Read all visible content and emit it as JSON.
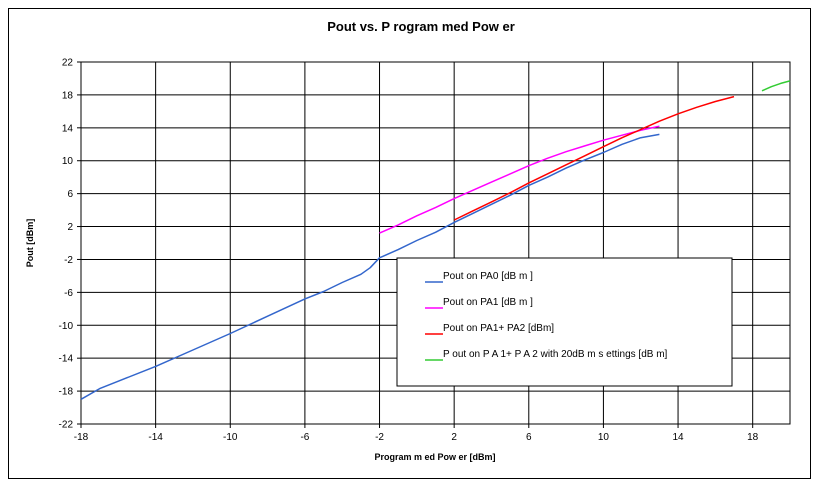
{
  "chart_data": {
    "type": "line",
    "title": "Pout vs. P rogram med Pow er",
    "xlabel": "Program m ed Pow er [dBm]",
    "ylabel": "Pout [dBm]",
    "xlim": [
      -18,
      20
    ],
    "ylim": [
      -22,
      22
    ],
    "xticks": [
      -18,
      -14,
      -10,
      -6,
      -2,
      2,
      6,
      10,
      14,
      18
    ],
    "yticks": [
      -22,
      -18,
      -14,
      -10,
      -6,
      -2,
      2,
      6,
      10,
      14,
      18,
      22
    ],
    "grid": true,
    "legend_position": "bottom-right inside plot",
    "series": [
      {
        "name": "Pout on PA0 [dB m ]",
        "color": "#3366cc",
        "x": [
          -18,
          -17,
          -16,
          -14,
          -12,
          -10,
          -8,
          -6,
          -5,
          -4,
          -3,
          -2.5,
          -2,
          -1,
          0,
          1,
          2,
          3,
          4,
          5,
          6,
          7,
          8,
          9,
          10,
          11,
          12,
          13
        ],
        "y": [
          -19,
          -17.7,
          -16.8,
          -15,
          -13,
          -11,
          -8.9,
          -6.8,
          -5.9,
          -4.8,
          -3.8,
          -3,
          -1.8,
          -0.8,
          0.3,
          1.3,
          2.5,
          3.6,
          4.7,
          5.8,
          7,
          8,
          9.1,
          10.1,
          11,
          12,
          12.8,
          13.2
        ]
      },
      {
        "name": "Pout on PA1 [dB m ]",
        "color": "#ff00ff",
        "x": [
          -2,
          -1,
          0,
          1,
          2,
          3,
          4,
          5,
          6,
          7,
          8,
          9,
          10,
          11,
          12,
          13
        ],
        "y": [
          1.2,
          2.2,
          3.3,
          4.3,
          5.4,
          6.4,
          7.4,
          8.4,
          9.4,
          10.3,
          11.1,
          11.8,
          12.5,
          13.1,
          13.7,
          14.2
        ]
      },
      {
        "name": "Pout on PA1+ PA2 [dBm]",
        "color": "#ff0000",
        "x": [
          2,
          3,
          4,
          5,
          6,
          7,
          8,
          9,
          10,
          11,
          12,
          13,
          14,
          15,
          16,
          17
        ],
        "y": [
          2.8,
          3.9,
          5,
          6.1,
          7.3,
          8.4,
          9.5,
          10.6,
          11.7,
          12.8,
          13.8,
          14.8,
          15.7,
          16.5,
          17.2,
          17.8
        ]
      },
      {
        "name": "P out on P A 1+ P A 2 with 20dB m s ettings [dB m]",
        "color": "#33cc33",
        "x": [
          18.5,
          19,
          19.5,
          20
        ],
        "y": [
          18.5,
          19,
          19.4,
          19.7
        ]
      }
    ]
  }
}
